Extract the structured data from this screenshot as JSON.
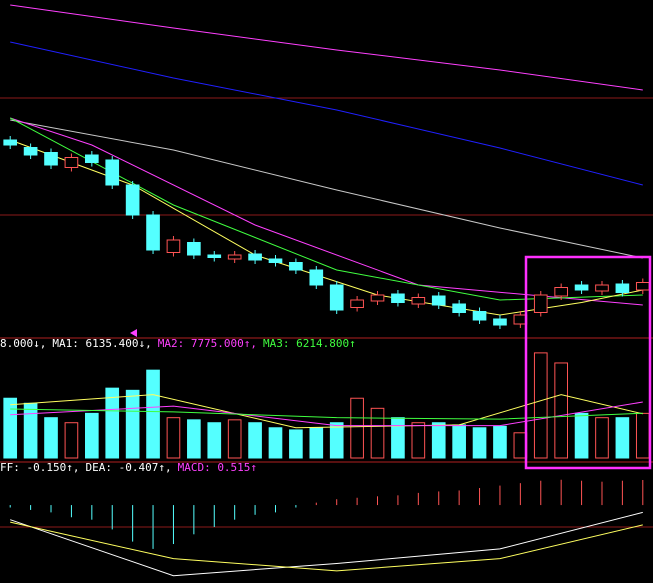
{
  "chart_data": [
    {
      "type": "candlestick",
      "ylim": [
        2400,
        3070
      ],
      "up_color": "#ff5454",
      "down_color": "#54ffff",
      "open": [
        2790,
        2775,
        2765,
        2735,
        2760,
        2750,
        2700,
        2640,
        2565,
        2585,
        2560,
        2552,
        2562,
        2552,
        2545,
        2530,
        2500,
        2455,
        2468,
        2482,
        2462,
        2478,
        2462,
        2447,
        2432,
        2422,
        2445,
        2478,
        2500,
        2488,
        2502,
        2490
      ],
      "high": [
        2798,
        2783,
        2773,
        2763,
        2768,
        2758,
        2708,
        2648,
        2598,
        2593,
        2568,
        2568,
        2570,
        2560,
        2553,
        2538,
        2508,
        2478,
        2488,
        2490,
        2483,
        2486,
        2470,
        2455,
        2440,
        2448,
        2488,
        2503,
        2508,
        2508,
        2510,
        2513
      ],
      "low": [
        2772,
        2752,
        2732,
        2727,
        2737,
        2692,
        2632,
        2562,
        2557,
        2552,
        2547,
        2544,
        2542,
        2537,
        2522,
        2492,
        2442,
        2447,
        2460,
        2457,
        2454,
        2452,
        2437,
        2422,
        2412,
        2414,
        2437,
        2470,
        2482,
        2480,
        2477,
        2482
      ],
      "close": [
        2780,
        2760,
        2740,
        2755,
        2745,
        2700,
        2640,
        2570,
        2590,
        2560,
        2555,
        2560,
        2550,
        2545,
        2530,
        2500,
        2450,
        2470,
        2480,
        2465,
        2475,
        2460,
        2445,
        2430,
        2420,
        2440,
        2480,
        2495,
        2490,
        2500,
        2485,
        2505
      ],
      "series": [
        {
          "color": "#ff40ff",
          "x": [
            0,
            8,
            16,
            24,
            31
          ],
          "values": [
            3060,
            3014,
            2970,
            2930,
            2890
          ]
        },
        {
          "color": "#2020ff",
          "x": [
            0,
            8,
            16,
            24,
            31
          ],
          "values": [
            2986,
            2914,
            2850,
            2774,
            2700
          ]
        },
        {
          "color": "#c8c8c8",
          "x": [
            0,
            8,
            16,
            24,
            31
          ],
          "values": [
            2830,
            2770,
            2690,
            2614,
            2554
          ]
        },
        {
          "color": "#ff40ff",
          "x": [
            0,
            4,
            12,
            20,
            31
          ],
          "values": [
            2834,
            2780,
            2620,
            2500,
            2460
          ]
        },
        {
          "color": "#40ff40",
          "x": [
            0,
            8,
            16,
            24,
            31
          ],
          "values": [
            2834,
            2660,
            2530,
            2470,
            2480
          ]
        },
        {
          "color": "#ffff60",
          "x": [
            0,
            6,
            12,
            18,
            24,
            28,
            31
          ],
          "values": [
            2790,
            2700,
            2560,
            2480,
            2440,
            2465,
            2490
          ]
        }
      ]
    },
    {
      "type": "bar",
      "ylim": [
        0,
        15000
      ],
      "legend": [
        {
          "text": "8.000↓,",
          "color": "#ffffff"
        },
        {
          "text": "MA1: 6135.400↓,",
          "color": "#ffffff"
        },
        {
          "text": "MA2: 7775.000↑,",
          "color": "#ff40ff"
        },
        {
          "text": "MA3: 6214.800↑",
          "color": "#40ff40"
        }
      ],
      "values": [
        8300,
        7600,
        5600,
        4900,
        6200,
        9700,
        9400,
        12200,
        5600,
        5300,
        4900,
        5300,
        4900,
        4200,
        3900,
        4200,
        4900,
        8300,
        6900,
        5600,
        4900,
        4900,
        4600,
        4200,
        4400,
        3500,
        14600,
        13200,
        6200,
        5600,
        5600,
        6200
      ],
      "series": [
        {
          "color": "#ffff60",
          "x": [
            0,
            7,
            14,
            22,
            27,
            31
          ],
          "values": [
            7400,
            8800,
            4200,
            4600,
            8800,
            6135.4
          ]
        },
        {
          "color": "#ff40ff",
          "x": [
            0,
            8,
            16,
            24,
            31
          ],
          "values": [
            6000,
            7200,
            4500,
            4500,
            7775
          ]
        },
        {
          "color": "#40ff40",
          "x": [
            0,
            8,
            16,
            24,
            31
          ],
          "values": [
            6800,
            6400,
            5600,
            5400,
            6214.8
          ]
        }
      ]
    },
    {
      "type": "macd",
      "ylim": [
        -1.6,
        0.72
      ],
      "legend": [
        {
          "text": "FF: -0.150↑,",
          "color": "#ffffff"
        },
        {
          "text": "DEA: -0.407↑,",
          "color": "#ffffff"
        },
        {
          "text": "MACD: 0.515↑",
          "color": "#ff40ff"
        }
      ],
      "values": [
        -0.05,
        -0.1,
        -0.15,
        -0.25,
        -0.3,
        -0.5,
        -0.75,
        -0.9,
        -0.8,
        -0.6,
        -0.45,
        -0.3,
        -0.2,
        -0.15,
        -0.05,
        0.05,
        0.12,
        0.15,
        0.18,
        0.2,
        0.25,
        0.28,
        0.3,
        0.35,
        0.4,
        0.45,
        0.5,
        0.52,
        0.5,
        0.48,
        0.5,
        0.515
      ],
      "series": [
        {
          "color": "#ffffff",
          "x": [
            0,
            8,
            16,
            24,
            31
          ],
          "values": [
            -0.3,
            -1.45,
            -1.2,
            -0.9,
            -0.15
          ]
        },
        {
          "color": "#ffff60",
          "x": [
            0,
            8,
            16,
            24,
            31
          ],
          "values": [
            -0.35,
            -1.1,
            -1.35,
            -1.1,
            -0.407
          ]
        }
      ]
    }
  ]
}
